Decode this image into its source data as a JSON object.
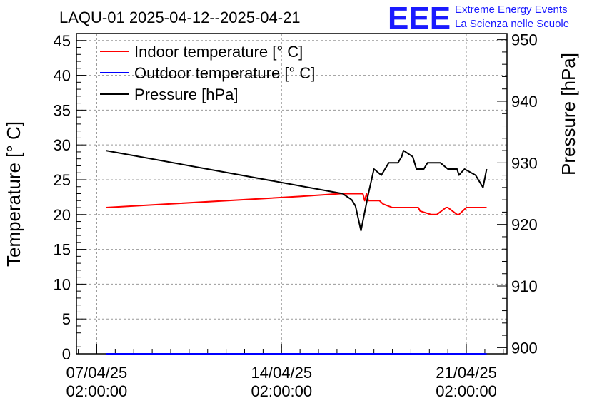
{
  "chart_data": {
    "type": "line",
    "title": "LAQU-01 2025-04-12--2025-04-21",
    "ylabel": "Temperature [° C]",
    "y2label": "Pressure [hPa]",
    "ylim": [
      0,
      46
    ],
    "y2lim": [
      899,
      951
    ],
    "yticks": [
      0,
      5,
      10,
      15,
      20,
      25,
      30,
      35,
      40,
      45
    ],
    "y2ticks": [
      900,
      910,
      920,
      930,
      940,
      950
    ],
    "xlim": [
      -1.1,
      22.2
    ],
    "xticks": [
      {
        "pos": 0,
        "line1": "07/04/25",
        "line2": "02:00:00"
      },
      {
        "pos": 10,
        "line1": "14/04/25",
        "line2": "02:00:00"
      },
      {
        "pos": 20,
        "line1": "21/04/25",
        "line2": "02:00:00"
      }
    ],
    "grid": true,
    "legend_position": "top-left",
    "series": [
      {
        "name": "Indoor temperature [° C]",
        "axis": "left",
        "color": "#ff0000",
        "x": [
          0.5,
          11,
          13.2,
          14.4,
          14.5,
          14.6,
          14.7,
          15.3,
          15.5,
          16.0,
          16.2,
          17.4,
          17.5,
          18.1,
          18.4,
          18.9,
          19.0,
          19.5,
          19.6,
          20.0,
          21.1
        ],
        "y": [
          21,
          22.6,
          23,
          23,
          22,
          23,
          22,
          22,
          21.5,
          21,
          21,
          21,
          20.5,
          20,
          20,
          21,
          21,
          20,
          20,
          21,
          21
        ]
      },
      {
        "name": "Outdoor temperature [° C]",
        "axis": "left",
        "color": "#0000ff",
        "x": [
          0.5,
          21.1
        ],
        "y": [
          0,
          0
        ]
      },
      {
        "name": "Pressure [hPa]",
        "axis": "right",
        "color": "#000000",
        "x": [
          0.5,
          13.3,
          13.8,
          14.0,
          14.3,
          14.7,
          15.0,
          15.4,
          15.8,
          16.3,
          16.5,
          16.6,
          17.1,
          17.3,
          17.7,
          17.9,
          18.3,
          18.6,
          19.0,
          19.5,
          19.6,
          19.9,
          20.5,
          20.9,
          21.1
        ],
        "y": [
          932,
          925,
          924,
          923,
          919,
          925,
          929,
          928,
          930,
          930,
          931,
          932,
          931,
          929,
          929,
          930,
          930,
          930,
          929,
          929,
          928,
          929,
          928,
          926,
          929
        ]
      }
    ]
  },
  "logo": {
    "mark": "EEE",
    "line1": "Extreme Energy Events",
    "line2": "La Scienza nelle Scuole"
  }
}
